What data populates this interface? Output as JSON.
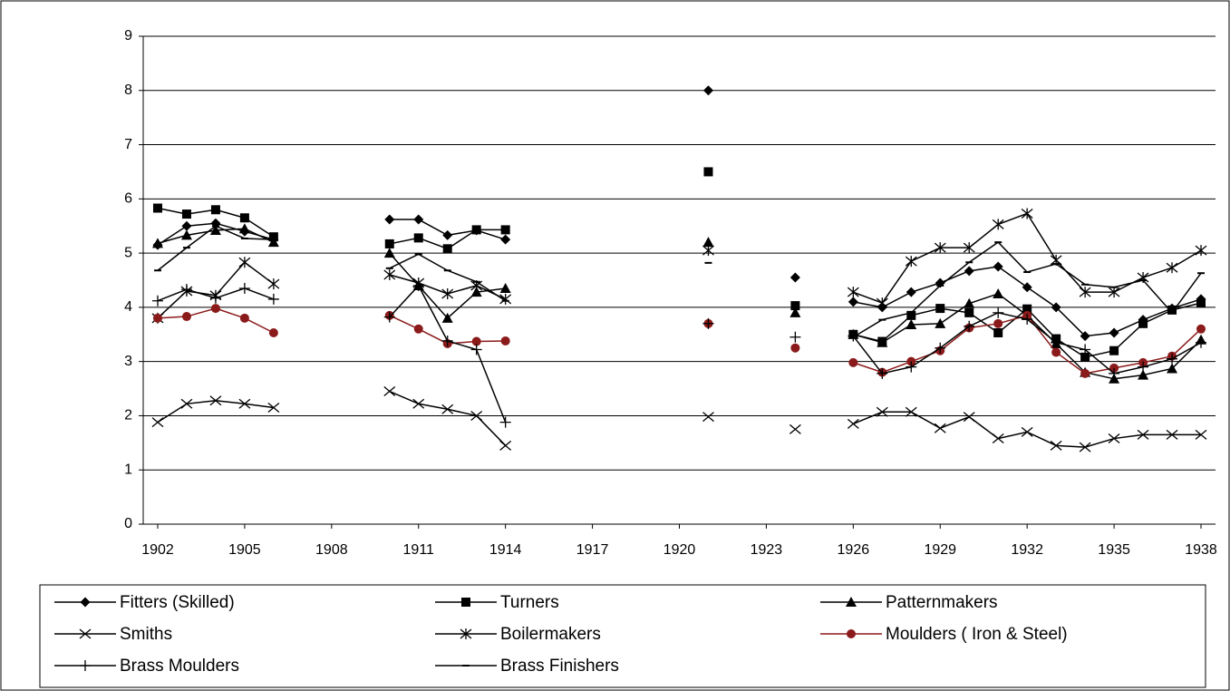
{
  "chart_data": {
    "type": "line",
    "x": [
      1902,
      1903,
      1904,
      1905,
      1906,
      1907,
      1908,
      1909,
      1910,
      1911,
      1912,
      1913,
      1914,
      1915,
      1916,
      1917,
      1918,
      1919,
      1920,
      1921,
      1922,
      1923,
      1924,
      1925,
      1926,
      1927,
      1928,
      1929,
      1930,
      1931,
      1932,
      1933,
      1934,
      1935,
      1936,
      1937,
      1938
    ],
    "xlim": [
      1901.5,
      1938.5
    ],
    "xticks": [
      1902,
      1905,
      1908,
      1911,
      1914,
      1917,
      1920,
      1923,
      1926,
      1929,
      1932,
      1935,
      1938
    ],
    "ylim": [
      0,
      9
    ],
    "yticks": [
      0,
      1,
      2,
      3,
      4,
      5,
      6,
      7,
      8,
      9
    ],
    "grid": true,
    "legend": "bottom",
    "series": [
      {
        "name": "Fitters (Skilled)",
        "color": "#000000",
        "marker": "diamond",
        "values": [
          5.15,
          5.5,
          5.55,
          5.4,
          5.25,
          null,
          null,
          null,
          5.62,
          5.62,
          5.33,
          5.42,
          5.25,
          null,
          null,
          null,
          null,
          null,
          null,
          8.0,
          null,
          null,
          4.55,
          null,
          4.1,
          4.0,
          4.28,
          4.45,
          4.67,
          4.75,
          4.37,
          4.0,
          3.47,
          3.53,
          3.77,
          3.98,
          4.15
        ]
      },
      {
        "name": "Turners",
        "color": "#000000",
        "marker": "square",
        "values": [
          5.83,
          5.72,
          5.8,
          5.65,
          5.3,
          null,
          null,
          null,
          5.17,
          5.28,
          5.08,
          5.43,
          5.43,
          null,
          null,
          null,
          null,
          null,
          null,
          6.5,
          null,
          null,
          4.03,
          null,
          3.5,
          3.37,
          3.85,
          3.98,
          3.9,
          3.53,
          3.97,
          3.42,
          3.08,
          3.2,
          3.7,
          3.95,
          4.08
        ]
      },
      {
        "name": "Patternmakers",
        "color": "#000000",
        "marker": "triangle",
        "values": [
          5.18,
          5.33,
          5.42,
          5.45,
          5.2,
          null,
          null,
          null,
          5.0,
          4.4,
          3.8,
          4.28,
          4.35,
          null,
          null,
          null,
          null,
          null,
          null,
          5.2,
          null,
          null,
          3.9,
          null,
          3.5,
          3.35,
          3.68,
          3.7,
          4.07,
          4.25,
          3.85,
          3.33,
          2.8,
          2.68,
          2.75,
          2.87,
          3.4
        ]
      },
      {
        "name": "Smiths",
        "color": "#000000",
        "marker": "x",
        "values": [
          1.88,
          2.22,
          2.28,
          2.22,
          2.15,
          null,
          null,
          null,
          2.45,
          2.22,
          2.12,
          2.0,
          1.45,
          null,
          null,
          null,
          null,
          null,
          null,
          1.98,
          null,
          null,
          1.75,
          null,
          1.85,
          2.07,
          2.07,
          1.77,
          1.98,
          1.58,
          1.7,
          1.45,
          1.42,
          1.58,
          1.65,
          1.65,
          1.65
        ]
      },
      {
        "name": "Boilermakers",
        "color": "#000000",
        "marker": "star",
        "values": [
          3.8,
          4.3,
          4.22,
          4.83,
          4.43,
          null,
          null,
          null,
          4.6,
          4.45,
          4.25,
          4.4,
          4.15,
          null,
          null,
          null,
          null,
          null,
          null,
          5.05,
          null,
          null,
          null,
          null,
          4.28,
          4.08,
          4.85,
          5.1,
          5.1,
          5.53,
          5.73,
          4.87,
          4.28,
          4.28,
          4.55,
          4.73,
          5.05
        ]
      },
      {
        "name": "Moulders ( Iron & Steel)",
        "color": "#8b1a1a",
        "marker": "circle",
        "values": [
          3.8,
          3.83,
          3.98,
          3.8,
          3.53,
          null,
          null,
          null,
          3.85,
          3.6,
          3.33,
          3.37,
          3.38,
          null,
          null,
          null,
          null,
          null,
          null,
          3.7,
          null,
          null,
          3.25,
          null,
          2.98,
          2.8,
          3.0,
          3.2,
          3.62,
          3.7,
          3.85,
          3.17,
          2.78,
          2.88,
          2.98,
          3.1,
          3.6
        ]
      },
      {
        "name": "Brass Moulders",
        "color": "#000000",
        "marker": "plus",
        "values": [
          4.12,
          4.33,
          4.17,
          4.35,
          4.15,
          null,
          null,
          null,
          3.82,
          4.4,
          3.38,
          3.22,
          1.88,
          null,
          null,
          null,
          null,
          null,
          null,
          3.7,
          null,
          null,
          3.45,
          null,
          3.47,
          2.78,
          2.9,
          3.25,
          3.65,
          3.9,
          3.78,
          3.35,
          3.22,
          2.78,
          2.9,
          3.05,
          3.35
        ]
      },
      {
        "name": "Brass Finishers",
        "color": "#000000",
        "marker": "dash",
        "values": [
          4.68,
          5.1,
          5.5,
          5.27,
          5.25,
          null,
          null,
          null,
          4.72,
          4.98,
          4.68,
          4.47,
          4.12,
          null,
          null,
          null,
          null,
          null,
          null,
          4.82,
          null,
          null,
          null,
          null,
          3.45,
          3.77,
          3.9,
          4.4,
          4.83,
          5.2,
          4.65,
          4.8,
          4.42,
          4.37,
          4.5,
          3.9,
          4.63
        ]
      }
    ]
  }
}
